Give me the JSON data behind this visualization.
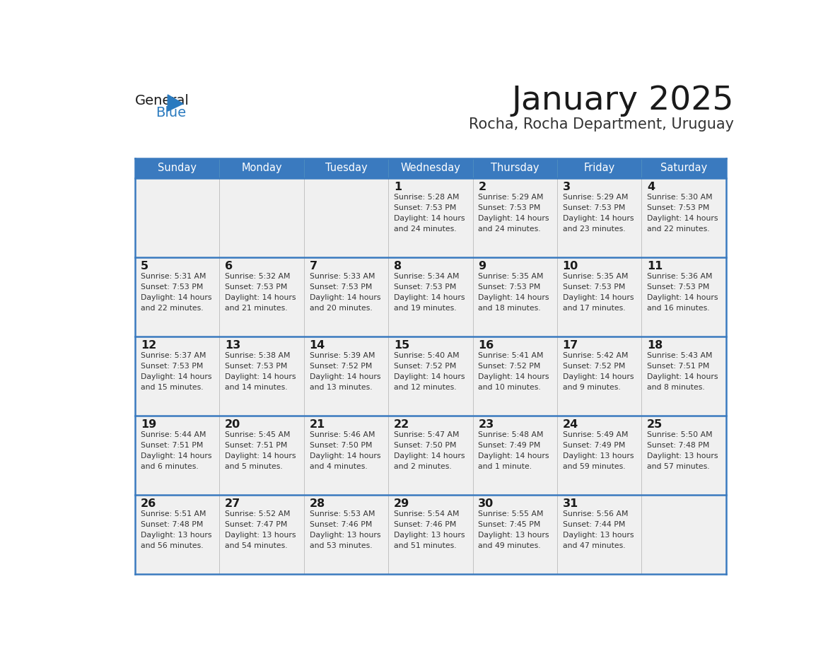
{
  "title": "January 2025",
  "subtitle": "Rocha, Rocha Department, Uruguay",
  "header_color": "#3a7abf",
  "header_text_color": "#ffffff",
  "cell_bg_color": "#f0f0f0",
  "border_color": "#3a7abf",
  "days_of_week": [
    "Sunday",
    "Monday",
    "Tuesday",
    "Wednesday",
    "Thursday",
    "Friday",
    "Saturday"
  ],
  "calendar_data": [
    [
      {
        "day": "",
        "sunrise": "",
        "sunset": "",
        "daylight": ""
      },
      {
        "day": "",
        "sunrise": "",
        "sunset": "",
        "daylight": ""
      },
      {
        "day": "",
        "sunrise": "",
        "sunset": "",
        "daylight": ""
      },
      {
        "day": "1",
        "sunrise": "5:28 AM",
        "sunset": "7:53 PM",
        "daylight_line1": "Daylight: 14 hours",
        "daylight_line2": "and 24 minutes."
      },
      {
        "day": "2",
        "sunrise": "5:29 AM",
        "sunset": "7:53 PM",
        "daylight_line1": "Daylight: 14 hours",
        "daylight_line2": "and 24 minutes."
      },
      {
        "day": "3",
        "sunrise": "5:29 AM",
        "sunset": "7:53 PM",
        "daylight_line1": "Daylight: 14 hours",
        "daylight_line2": "and 23 minutes."
      },
      {
        "day": "4",
        "sunrise": "5:30 AM",
        "sunset": "7:53 PM",
        "daylight_line1": "Daylight: 14 hours",
        "daylight_line2": "and 22 minutes."
      }
    ],
    [
      {
        "day": "5",
        "sunrise": "5:31 AM",
        "sunset": "7:53 PM",
        "daylight_line1": "Daylight: 14 hours",
        "daylight_line2": "and 22 minutes."
      },
      {
        "day": "6",
        "sunrise": "5:32 AM",
        "sunset": "7:53 PM",
        "daylight_line1": "Daylight: 14 hours",
        "daylight_line2": "and 21 minutes."
      },
      {
        "day": "7",
        "sunrise": "5:33 AM",
        "sunset": "7:53 PM",
        "daylight_line1": "Daylight: 14 hours",
        "daylight_line2": "and 20 minutes."
      },
      {
        "day": "8",
        "sunrise": "5:34 AM",
        "sunset": "7:53 PM",
        "daylight_line1": "Daylight: 14 hours",
        "daylight_line2": "and 19 minutes."
      },
      {
        "day": "9",
        "sunrise": "5:35 AM",
        "sunset": "7:53 PM",
        "daylight_line1": "Daylight: 14 hours",
        "daylight_line2": "and 18 minutes."
      },
      {
        "day": "10",
        "sunrise": "5:35 AM",
        "sunset": "7:53 PM",
        "daylight_line1": "Daylight: 14 hours",
        "daylight_line2": "and 17 minutes."
      },
      {
        "day": "11",
        "sunrise": "5:36 AM",
        "sunset": "7:53 PM",
        "daylight_line1": "Daylight: 14 hours",
        "daylight_line2": "and 16 minutes."
      }
    ],
    [
      {
        "day": "12",
        "sunrise": "5:37 AM",
        "sunset": "7:53 PM",
        "daylight_line1": "Daylight: 14 hours",
        "daylight_line2": "and 15 minutes."
      },
      {
        "day": "13",
        "sunrise": "5:38 AM",
        "sunset": "7:53 PM",
        "daylight_line1": "Daylight: 14 hours",
        "daylight_line2": "and 14 minutes."
      },
      {
        "day": "14",
        "sunrise": "5:39 AM",
        "sunset": "7:52 PM",
        "daylight_line1": "Daylight: 14 hours",
        "daylight_line2": "and 13 minutes."
      },
      {
        "day": "15",
        "sunrise": "5:40 AM",
        "sunset": "7:52 PM",
        "daylight_line1": "Daylight: 14 hours",
        "daylight_line2": "and 12 minutes."
      },
      {
        "day": "16",
        "sunrise": "5:41 AM",
        "sunset": "7:52 PM",
        "daylight_line1": "Daylight: 14 hours",
        "daylight_line2": "and 10 minutes."
      },
      {
        "day": "17",
        "sunrise": "5:42 AM",
        "sunset": "7:52 PM",
        "daylight_line1": "Daylight: 14 hours",
        "daylight_line2": "and 9 minutes."
      },
      {
        "day": "18",
        "sunrise": "5:43 AM",
        "sunset": "7:51 PM",
        "daylight_line1": "Daylight: 14 hours",
        "daylight_line2": "and 8 minutes."
      }
    ],
    [
      {
        "day": "19",
        "sunrise": "5:44 AM",
        "sunset": "7:51 PM",
        "daylight_line1": "Daylight: 14 hours",
        "daylight_line2": "and 6 minutes."
      },
      {
        "day": "20",
        "sunrise": "5:45 AM",
        "sunset": "7:51 PM",
        "daylight_line1": "Daylight: 14 hours",
        "daylight_line2": "and 5 minutes."
      },
      {
        "day": "21",
        "sunrise": "5:46 AM",
        "sunset": "7:50 PM",
        "daylight_line1": "Daylight: 14 hours",
        "daylight_line2": "and 4 minutes."
      },
      {
        "day": "22",
        "sunrise": "5:47 AM",
        "sunset": "7:50 PM",
        "daylight_line1": "Daylight: 14 hours",
        "daylight_line2": "and 2 minutes."
      },
      {
        "day": "23",
        "sunrise": "5:48 AM",
        "sunset": "7:49 PM",
        "daylight_line1": "Daylight: 14 hours",
        "daylight_line2": "and 1 minute."
      },
      {
        "day": "24",
        "sunrise": "5:49 AM",
        "sunset": "7:49 PM",
        "daylight_line1": "Daylight: 13 hours",
        "daylight_line2": "and 59 minutes."
      },
      {
        "day": "25",
        "sunrise": "5:50 AM",
        "sunset": "7:48 PM",
        "daylight_line1": "Daylight: 13 hours",
        "daylight_line2": "and 57 minutes."
      }
    ],
    [
      {
        "day": "26",
        "sunrise": "5:51 AM",
        "sunset": "7:48 PM",
        "daylight_line1": "Daylight: 13 hours",
        "daylight_line2": "and 56 minutes."
      },
      {
        "day": "27",
        "sunrise": "5:52 AM",
        "sunset": "7:47 PM",
        "daylight_line1": "Daylight: 13 hours",
        "daylight_line2": "and 54 minutes."
      },
      {
        "day": "28",
        "sunrise": "5:53 AM",
        "sunset": "7:46 PM",
        "daylight_line1": "Daylight: 13 hours",
        "daylight_line2": "and 53 minutes."
      },
      {
        "day": "29",
        "sunrise": "5:54 AM",
        "sunset": "7:46 PM",
        "daylight_line1": "Daylight: 13 hours",
        "daylight_line2": "and 51 minutes."
      },
      {
        "day": "30",
        "sunrise": "5:55 AM",
        "sunset": "7:45 PM",
        "daylight_line1": "Daylight: 13 hours",
        "daylight_line2": "and 49 minutes."
      },
      {
        "day": "31",
        "sunrise": "5:56 AM",
        "sunset": "7:44 PM",
        "daylight_line1": "Daylight: 13 hours",
        "daylight_line2": "and 47 minutes."
      },
      {
        "day": "",
        "sunrise": "",
        "sunset": "",
        "daylight_line1": "",
        "daylight_line2": ""
      }
    ]
  ]
}
